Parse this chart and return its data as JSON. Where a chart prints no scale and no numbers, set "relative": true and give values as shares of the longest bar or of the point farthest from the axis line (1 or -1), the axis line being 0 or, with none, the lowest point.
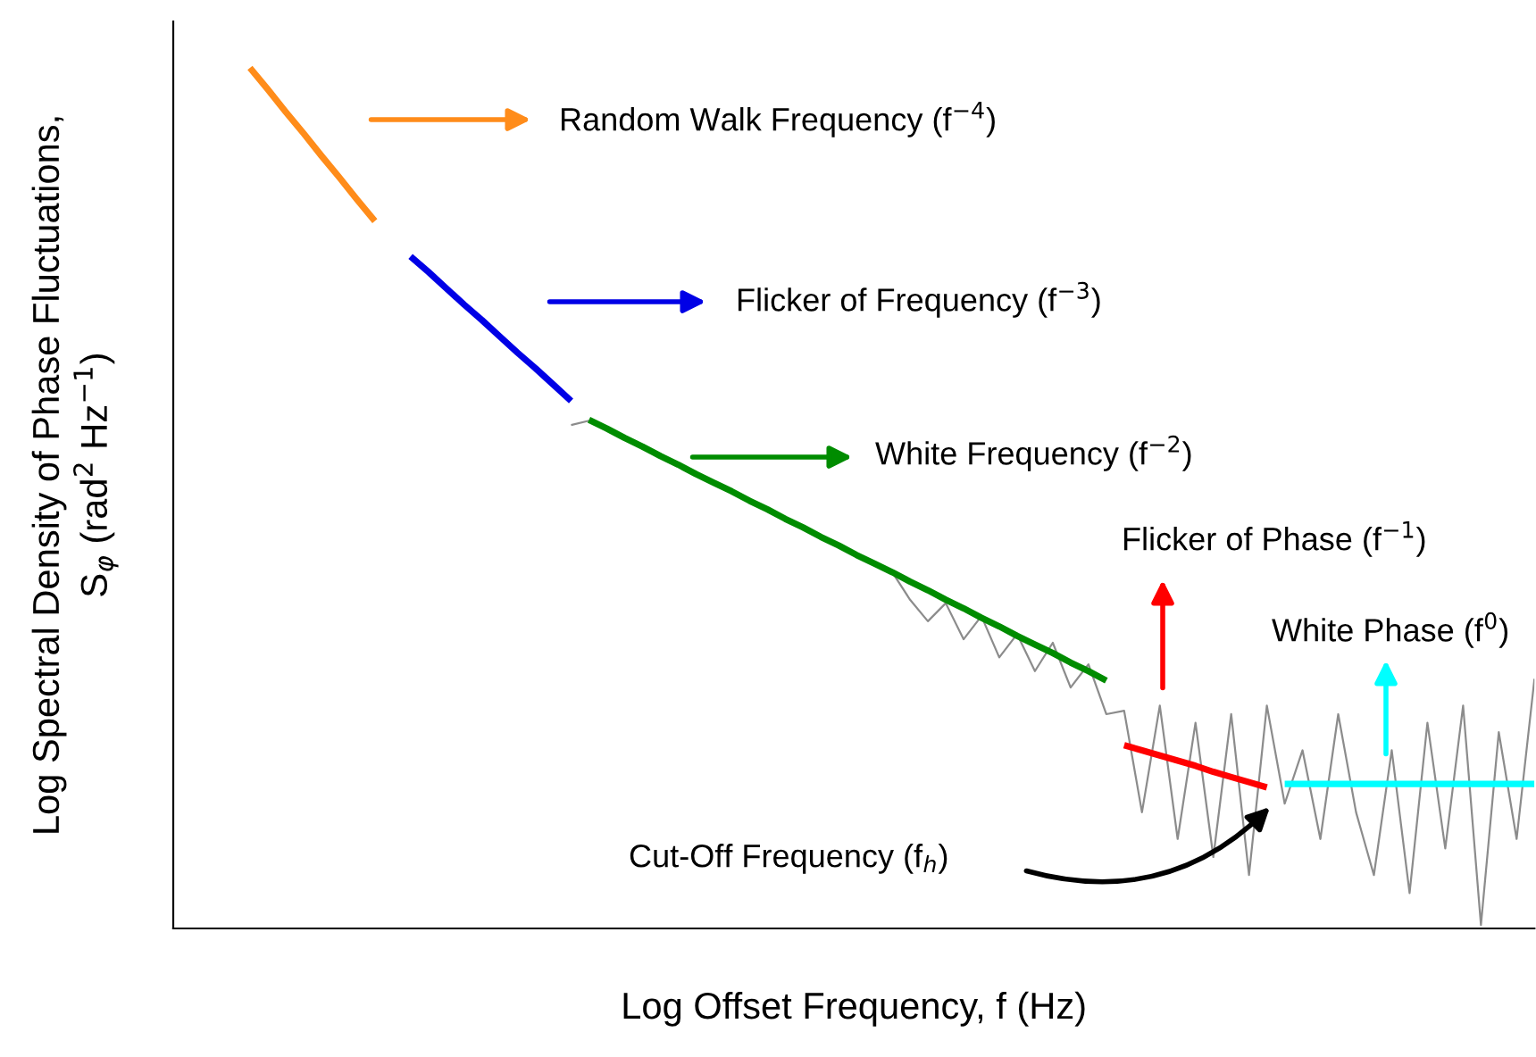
{
  "chart_data": {
    "type": "line",
    "relative": true,
    "xlabel": "Log Offset Frequency, f (Hz)",
    "ylabel": "Log Spectral Density of Phase Fluctuations,\nS$_{φ}$ (rad$^{2}$ Hz$^{−1}$)",
    "categories": [
      null,
      null,
      null,
      null,
      null,
      null,
      null,
      null,
      null,
      null,
      null,
      null,
      null,
      null,
      null,
      null,
      null,
      null,
      null,
      null,
      null,
      null,
      null,
      null,
      null,
      null,
      null,
      null,
      null,
      null,
      null,
      null,
      null,
      null,
      null,
      null,
      null,
      null,
      null,
      null,
      null,
      null,
      null,
      null,
      null,
      null,
      null,
      null,
      null,
      null,
      null,
      null,
      null,
      null,
      null,
      null,
      null,
      null,
      null,
      null,
      null,
      null,
      null,
      null,
      null,
      null,
      null,
      null,
      null,
      null,
      null,
      null,
      null,
      null,
      null,
      null,
      null
    ],
    "series": [
      {
        "color": "#8c8c8c",
        "values": [
          null,
          null,
          null,
          null,
          null,
          null,
          null,
          null,
          null,
          null,
          null,
          null,
          null,
          null,
          null,
          null,
          null,
          null,
          null,
          null,
          null,
          null,
          0.585,
          0.59,
          null,
          null,
          null,
          null,
          null,
          null,
          null,
          null,
          null,
          null,
          null,
          null,
          null,
          null,
          null,
          null,
          0.414,
          0.382,
          0.357,
          0.378,
          0.336,
          0.363,
          0.315,
          0.342,
          0.299,
          0.332,
          0.28,
          0.307,
          0.249,
          0.253,
          0.135,
          0.259,
          0.104,
          0.239,
          0.083,
          0.249,
          0.062,
          0.259,
          0.145,
          0.207,
          0.104,
          0.249,
          0.135,
          0.062,
          0.207,
          0.041,
          0.239,
          0.093,
          0.259,
          0.004,
          0.228,
          0.104,
          0.29
        ]
      },
      {
        "color": "#ff8c1a",
        "values": [
          null,
          null,
          null,
          null,
          1.0,
          0.975,
          0.949,
          0.924,
          0.898,
          0.873,
          0.847,
          0.822,
          null,
          null,
          null,
          null,
          null,
          null,
          null,
          null,
          null,
          null,
          null,
          null,
          null,
          null,
          null,
          null,
          null,
          null,
          null,
          null,
          null,
          null,
          null,
          null,
          null,
          null,
          null,
          null,
          null,
          null,
          null,
          null,
          null,
          null,
          null,
          null,
          null,
          null,
          null,
          null,
          null,
          null,
          null,
          null,
          null,
          null,
          null,
          null,
          null,
          null,
          null,
          null,
          null,
          null,
          null,
          null,
          null,
          null,
          null,
          null,
          null,
          null,
          null,
          null,
          null
        ]
      },
      {
        "color": "#0000e6",
        "values": [
          null,
          null,
          null,
          null,
          null,
          null,
          null,
          null,
          null,
          null,
          null,
          null,
          null,
          0.781,
          0.763,
          0.744,
          0.725,
          0.707,
          0.688,
          0.669,
          0.651,
          0.632,
          0.613,
          null,
          null,
          null,
          null,
          null,
          null,
          null,
          null,
          null,
          null,
          null,
          null,
          null,
          null,
          null,
          null,
          null,
          null,
          null,
          null,
          null,
          null,
          null,
          null,
          null,
          null,
          null,
          null,
          null,
          null,
          null,
          null,
          null,
          null,
          null,
          null,
          null,
          null,
          null,
          null,
          null,
          null,
          null,
          null,
          null,
          null,
          null,
          null,
          null,
          null,
          null,
          null,
          null,
          null
        ]
      },
      {
        "color": "#008c00",
        "values": [
          null,
          null,
          null,
          null,
          null,
          null,
          null,
          null,
          null,
          null,
          null,
          null,
          null,
          null,
          null,
          null,
          null,
          null,
          null,
          null,
          null,
          null,
          null,
          0.591,
          0.581,
          0.57,
          0.56,
          0.549,
          0.539,
          0.528,
          0.518,
          0.508,
          0.497,
          0.487,
          0.476,
          0.466,
          0.455,
          0.445,
          0.434,
          0.424,
          0.414,
          0.403,
          0.393,
          0.382,
          0.372,
          0.361,
          0.351,
          0.34,
          0.33,
          0.32,
          0.309,
          0.299,
          0.288,
          null,
          null,
          null,
          null,
          null,
          null,
          null,
          null,
          null,
          null,
          null,
          null,
          null,
          null,
          null,
          null,
          null,
          null,
          null,
          null,
          null,
          null,
          null,
          null
        ]
      },
      {
        "color": "#ff0000",
        "values": [
          null,
          null,
          null,
          null,
          null,
          null,
          null,
          null,
          null,
          null,
          null,
          null,
          null,
          null,
          null,
          null,
          null,
          null,
          null,
          null,
          null,
          null,
          null,
          null,
          null,
          null,
          null,
          null,
          null,
          null,
          null,
          null,
          null,
          null,
          null,
          null,
          null,
          null,
          null,
          null,
          null,
          null,
          null,
          null,
          null,
          null,
          null,
          null,
          null,
          null,
          null,
          null,
          null,
          0.213,
          0.207,
          0.201,
          0.195,
          0.189,
          0.182,
          0.176,
          0.17,
          0.164,
          null,
          null,
          null,
          null,
          null,
          null,
          null,
          null,
          null,
          null,
          null,
          null,
          null,
          null,
          null
        ]
      },
      {
        "color": "#00ffff",
        "values": [
          null,
          null,
          null,
          null,
          null,
          null,
          null,
          null,
          null,
          null,
          null,
          null,
          null,
          null,
          null,
          null,
          null,
          null,
          null,
          null,
          null,
          null,
          null,
          null,
          null,
          null,
          null,
          null,
          null,
          null,
          null,
          null,
          null,
          null,
          null,
          null,
          null,
          null,
          null,
          null,
          null,
          null,
          null,
          null,
          null,
          null,
          null,
          null,
          null,
          null,
          null,
          null,
          null,
          null,
          null,
          null,
          null,
          null,
          null,
          null,
          null,
          null,
          0.168,
          0.168,
          0.168,
          0.168,
          0.168,
          0.168,
          0.168,
          0.168,
          0.168,
          0.168,
          0.168,
          0.168,
          0.168,
          0.168,
          0.168
        ]
      }
    ],
    "annotations": [
      "Random Walk Frequency (f$^{−4}$)",
      "Flicker of Frequency (f$^{−3}$)",
      "White Frequency (f$^{−2}$)",
      "Flicker of Phase (f$^{−1}$)",
      "White Phase (f$^{0}$)",
      "Cut-Off Frequency (f$_{h}$)"
    ]
  }
}
